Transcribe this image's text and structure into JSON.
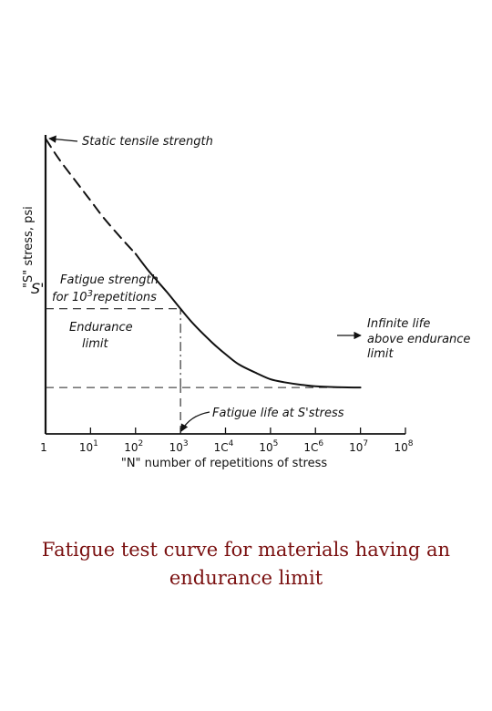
{
  "caption": "Fatigue test curve for materials having an endurance limit",
  "chart_data": {
    "type": "line",
    "x_scale": "log",
    "y_scale": "linear",
    "xlabel": "\"N\" number of repetitions of stress",
    "ylabel": "\"S\" stress, psi",
    "x_ticks": [
      {
        "value": 1,
        "label": "1"
      },
      {
        "value": 10,
        "label": "10",
        "exp": "1"
      },
      {
        "value": 100,
        "label": "10",
        "exp": "2"
      },
      {
        "value": 1000,
        "label": "10",
        "exp": "3"
      },
      {
        "value": 10000,
        "label": "1C",
        "exp": "4"
      },
      {
        "value": 100000,
        "label": "10",
        "exp": "5"
      },
      {
        "value": 1000000,
        "label": "1C",
        "exp": "6"
      },
      {
        "value": 10000000,
        "label": "10",
        "exp": "7"
      },
      {
        "value": 100000000,
        "label": "10",
        "exp": "8"
      }
    ],
    "xlim": [
      1,
      100000000
    ],
    "ylim": [
      0,
      1.0
    ],
    "y_axis_symbol": "S'",
    "series": [
      {
        "style": "dashed",
        "x": [
          1,
          2,
          5,
          10,
          20,
          50,
          100
        ],
        "y": [
          1.0,
          0.93,
          0.85,
          0.79,
          0.73,
          0.66,
          0.61
        ]
      },
      {
        "style": "solid",
        "x": [
          100,
          200,
          500,
          1000,
          2000,
          5000,
          10000,
          20000,
          50000,
          100000,
          200000,
          500000,
          1000000,
          3000000,
          10000000
        ],
        "y": [
          0.61,
          0.55,
          0.48,
          0.4237,
          0.37,
          0.31,
          0.27,
          0.235,
          0.205,
          0.185,
          0.175,
          0.166,
          0.161,
          0.158,
          0.157
        ]
      }
    ],
    "reference_lines": [
      {
        "orientation": "horizontal",
        "value": 0.4237,
        "style": "dashed",
        "from": 1,
        "to": 1000
      },
      {
        "orientation": "horizontal",
        "value": 0.157,
        "style": "dashed",
        "from": 1,
        "to": 10000000
      },
      {
        "orientation": "vertical",
        "value": 1000,
        "style": "dash-dot",
        "from": 0.157,
        "to": 0.4237
      },
      {
        "orientation": "vertical",
        "value": 1000,
        "style": "dashed",
        "from": 0,
        "to": 0.157
      }
    ],
    "annotations": {
      "static_tensile": "Static tensile strength",
      "fatigue_strength_line1": "Fatigue strength",
      "fatigue_strength_line2_pre": "for 10",
      "fatigue_strength_line2_exp": "3",
      "fatigue_strength_line2_post": "repetitions",
      "endurance_line1": "Endurance",
      "endurance_line2": "limit",
      "infinite_line1": "Infinite life",
      "infinite_line2": "above endurance",
      "infinite_line3": "limit",
      "fatigue_life": "Fatigue life at S'stress"
    }
  }
}
